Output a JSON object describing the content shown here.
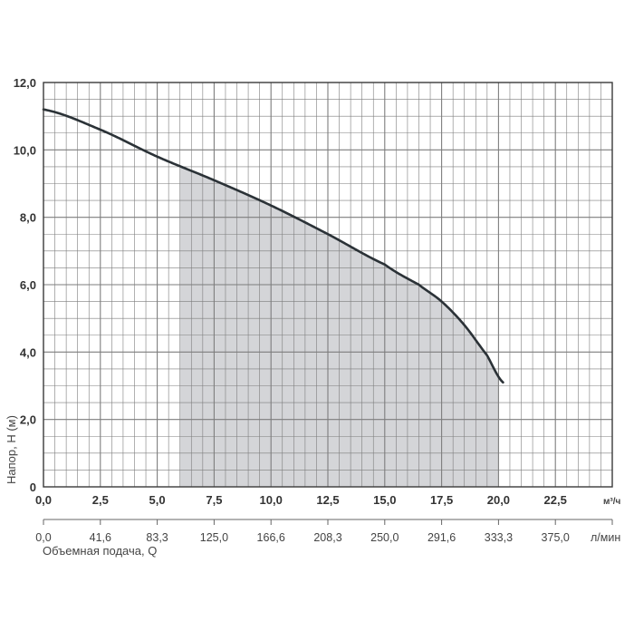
{
  "chart_data": {
    "type": "line",
    "title": "",
    "ylabel": "Напор, Н (м)",
    "xlabel": "Объемная подача, Q",
    "x_unit": "м³/ч",
    "x2_unit": "л/мин",
    "xlim": [
      0,
      25
    ],
    "ylim": [
      0,
      12
    ],
    "grid": true,
    "y_ticks": [
      "0",
      "2,0",
      "4,0",
      "6,0",
      "8,0",
      "10,0",
      "12,0"
    ],
    "x_ticks": [
      "0,0",
      "2,5",
      "5,0",
      "7,5",
      "10,0",
      "12,5",
      "15,0",
      "17,5",
      "20,0",
      "22,5"
    ],
    "x2_ticks": [
      "0,0",
      "41,6",
      "83,3",
      "125,0",
      "166,6",
      "208,3",
      "250,0",
      "291,6",
      "333,3",
      "375,0"
    ],
    "series": [
      {
        "x": [
          0,
          2.5,
          5.0,
          7.5,
          10.0,
          12.5,
          15.0,
          16.5,
          17.5,
          18.5,
          19.5,
          20.2
        ],
        "y": [
          11.2,
          10.6,
          9.8,
          9.1,
          8.35,
          7.5,
          6.6,
          6.0,
          5.5,
          4.8,
          3.9,
          3.1
        ]
      }
    ],
    "working_range": [
      6.0,
      20.0
    ],
    "colors": {
      "curve": "#2b3237",
      "fill": "#d4d5d8",
      "grid": "#7d7d7d",
      "frame": "#3a3a3a"
    }
  }
}
